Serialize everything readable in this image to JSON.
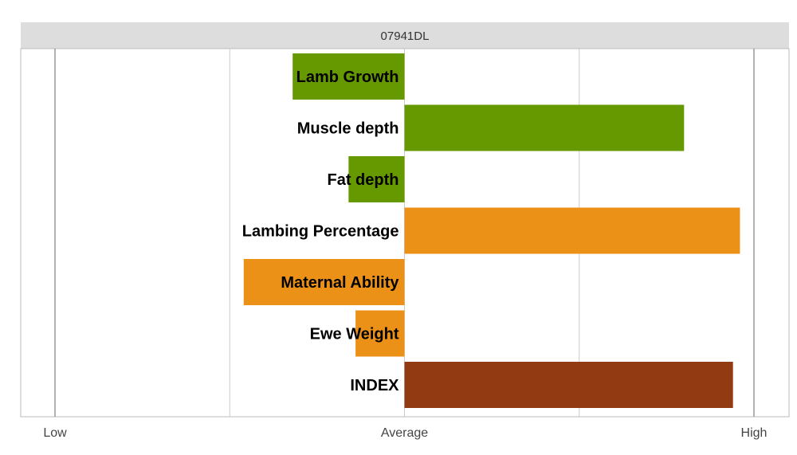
{
  "chart_data": {
    "type": "bar",
    "orientation": "horizontal",
    "title": "07941DL",
    "categories": [
      "Lamb Growth",
      "Muscle depth",
      "Fat depth",
      "Lambing Percentage",
      "Maternal Ability",
      "Ewe Weight",
      "INDEX"
    ],
    "values": [
      -32,
      80,
      -16,
      96,
      -46,
      -14,
      94
    ],
    "colors": [
      "#669900",
      "#669900",
      "#669900",
      "#EC9118",
      "#EC9118",
      "#EC9118",
      "#923B12"
    ],
    "xlim": [
      -100,
      100
    ],
    "x_ticks": [
      {
        "value": -100,
        "label": "Low"
      },
      {
        "value": 0,
        "label": "Average"
      },
      {
        "value": 100,
        "label": "High"
      }
    ],
    "grid_values": [
      -100,
      -50,
      0,
      50,
      100
    ],
    "grid": true,
    "legend": "none"
  }
}
